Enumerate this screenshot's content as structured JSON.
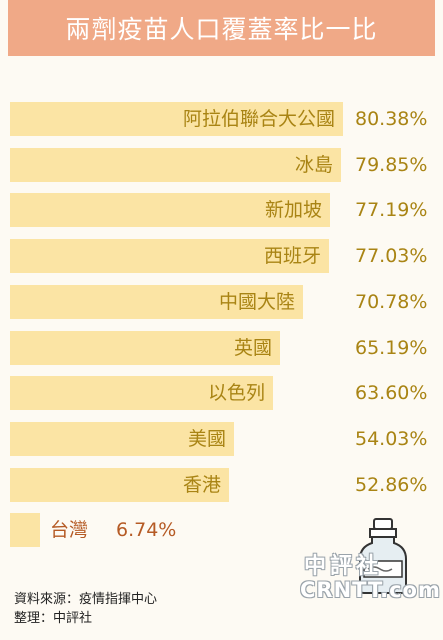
{
  "chart_data": {
    "type": "bar",
    "orientation": "horizontal",
    "title": "兩劑疫苗人口覆蓋率比一比",
    "categories": [
      "阿拉伯聯合大公國",
      "冰島",
      "新加坡",
      "西班牙",
      "中國大陸",
      "英國",
      "以色列",
      "美國",
      "香港",
      "台灣"
    ],
    "values": [
      80.38,
      79.85,
      77.19,
      77.03,
      70.78,
      65.19,
      63.6,
      54.03,
      52.86,
      6.74
    ],
    "value_labels": [
      "80.38%",
      "79.85%",
      "77.19%",
      "77.03%",
      "70.78%",
      "65.19%",
      "63.60%",
      "54.03%",
      "52.86%",
      "6.74%"
    ],
    "highlight": "台灣",
    "grid": false,
    "legend": "none"
  },
  "colors": {
    "title_banner": "#f0a987",
    "bar": "#fbe4a4",
    "label_text": "#a98414",
    "highlight_text": "#b55a24",
    "background": "#fdfaf3"
  },
  "footer": {
    "source_line": "資料來源：疫情指揮中心",
    "editor_line": "整理：中評社"
  },
  "watermark": {
    "chinese": "中評社",
    "english": "CRNTT.com"
  },
  "icons": [
    "vaccine-vial-icon"
  ]
}
